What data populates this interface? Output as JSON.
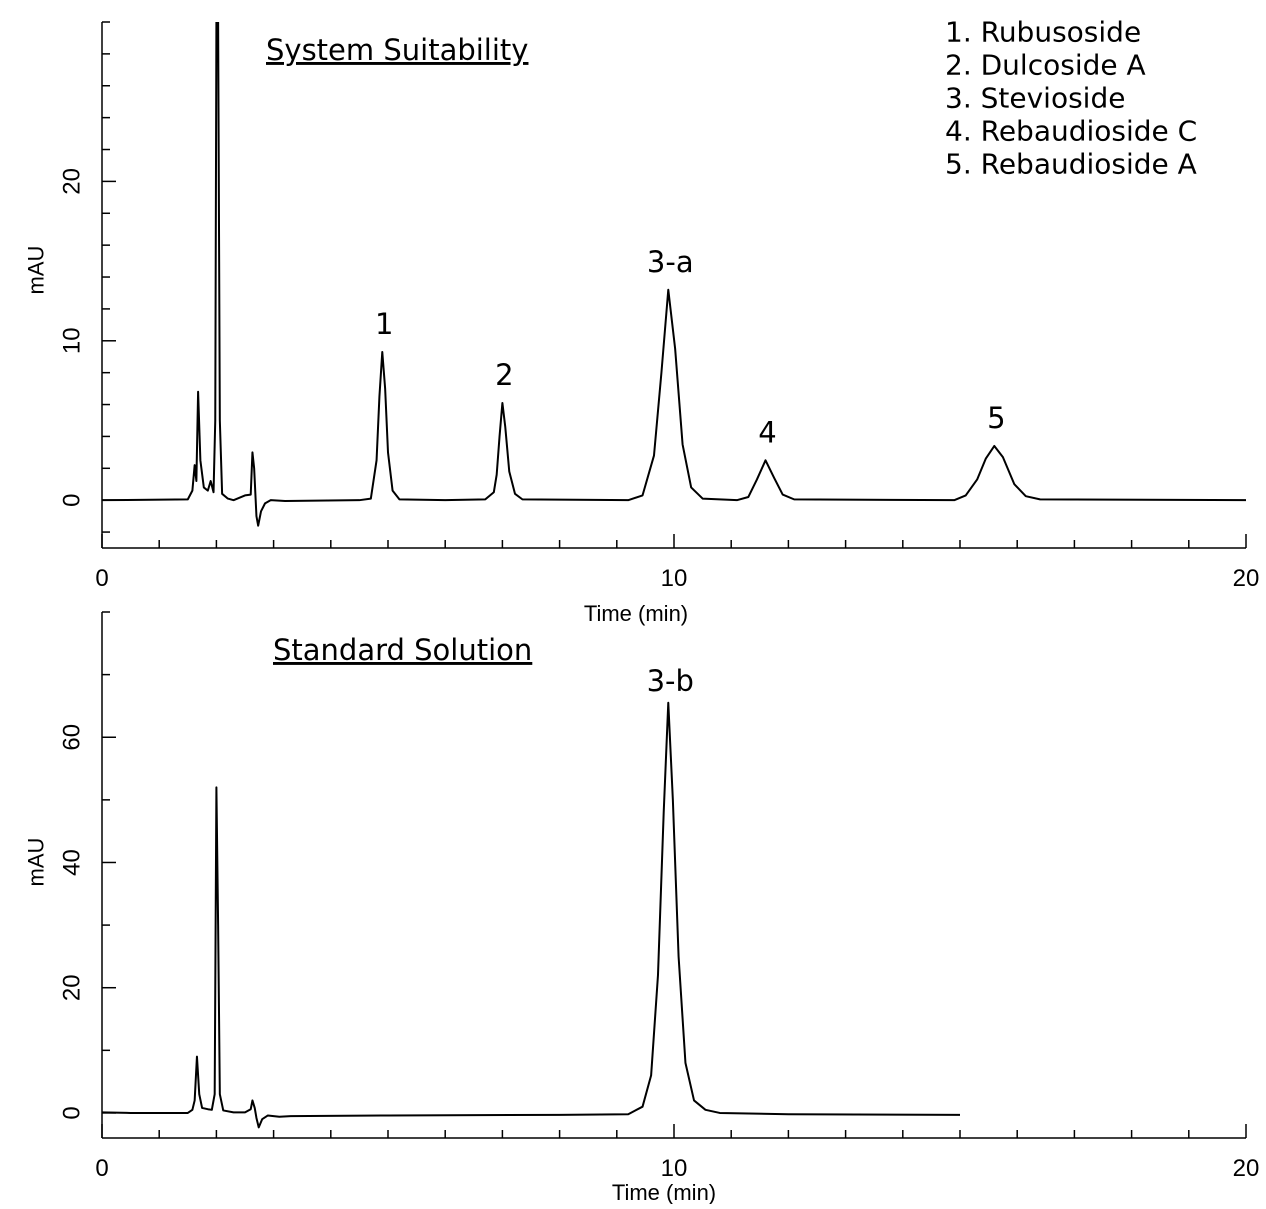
{
  "chart_data": [
    {
      "type": "line",
      "title": "System Suitability",
      "xlabel": "Time  (min)",
      "ylabel": "mAU",
      "xlim": [
        0,
        20
      ],
      "ylim": [
        -3,
        30
      ],
      "x_ticks": [
        0,
        10,
        20
      ],
      "y_ticks": [
        0,
        10,
        20
      ],
      "x_minor_step": 1,
      "y_minor_step": 2,
      "grid": false,
      "legend_position": "top-right",
      "legend": [
        "1. Rubusoside",
        "2. Dulcoside A",
        "3. Stevioside",
        "4. Rebaudioside C",
        "5. Rebaudioside A"
      ],
      "peak_labels": [
        {
          "label": "1",
          "x": 4.9,
          "y": 9.3
        },
        {
          "label": "2",
          "x": 7.0,
          "y": 6.1
        },
        {
          "label": "3-a",
          "x": 9.9,
          "y": 13.2
        },
        {
          "label": "4",
          "x": 11.6,
          "y": 2.5
        },
        {
          "label": "5",
          "x": 15.6,
          "y": 3.4
        }
      ],
      "series": [
        {
          "points": [
            [
              0.0,
              0.0
            ],
            [
              1.5,
              0.05
            ],
            [
              1.58,
              0.6
            ],
            [
              1.62,
              2.2
            ],
            [
              1.65,
              1.2
            ],
            [
              1.68,
              6.8
            ],
            [
              1.72,
              2.5
            ],
            [
              1.78,
              0.8
            ],
            [
              1.85,
              0.6
            ],
            [
              1.9,
              1.2
            ],
            [
              1.95,
              0.5
            ],
            [
              1.98,
              5.0
            ],
            [
              2.0,
              30.0
            ],
            [
              2.03,
              30.0
            ],
            [
              2.06,
              5.0
            ],
            [
              2.1,
              0.4
            ],
            [
              2.2,
              0.1
            ],
            [
              2.3,
              0.0
            ],
            [
              2.4,
              0.15
            ],
            [
              2.5,
              0.3
            ],
            [
              2.6,
              0.35
            ],
            [
              2.63,
              3.0
            ],
            [
              2.66,
              2.0
            ],
            [
              2.7,
              -1.0
            ],
            [
              2.73,
              -1.6
            ],
            [
              2.78,
              -0.7
            ],
            [
              2.85,
              -0.2
            ],
            [
              2.95,
              0.0
            ],
            [
              3.2,
              -0.05
            ],
            [
              4.5,
              0.0
            ],
            [
              4.7,
              0.1
            ],
            [
              4.8,
              2.5
            ],
            [
              4.85,
              6.5
            ],
            [
              4.9,
              9.3
            ],
            [
              4.95,
              7.0
            ],
            [
              5.0,
              3.0
            ],
            [
              5.08,
              0.6
            ],
            [
              5.2,
              0.05
            ],
            [
              6.0,
              0.0
            ],
            [
              6.7,
              0.05
            ],
            [
              6.8,
              0.35
            ],
            [
              6.85,
              0.5
            ],
            [
              6.9,
              1.6
            ],
            [
              6.95,
              4.0
            ],
            [
              7.0,
              6.1
            ],
            [
              7.05,
              4.6
            ],
            [
              7.12,
              1.8
            ],
            [
              7.22,
              0.4
            ],
            [
              7.35,
              0.05
            ],
            [
              9.2,
              0.0
            ],
            [
              9.45,
              0.3
            ],
            [
              9.65,
              2.8
            ],
            [
              9.78,
              8.0
            ],
            [
              9.9,
              13.2
            ],
            [
              10.02,
              9.5
            ],
            [
              10.15,
              3.5
            ],
            [
              10.3,
              0.8
            ],
            [
              10.5,
              0.1
            ],
            [
              11.1,
              0.0
            ],
            [
              11.3,
              0.2
            ],
            [
              11.45,
              1.3
            ],
            [
              11.6,
              2.5
            ],
            [
              11.75,
              1.4
            ],
            [
              11.9,
              0.35
            ],
            [
              12.1,
              0.05
            ],
            [
              14.9,
              0.0
            ],
            [
              15.1,
              0.3
            ],
            [
              15.3,
              1.3
            ],
            [
              15.45,
              2.6
            ],
            [
              15.6,
              3.4
            ],
            [
              15.75,
              2.7
            ],
            [
              15.95,
              1.0
            ],
            [
              16.15,
              0.25
            ],
            [
              16.4,
              0.05
            ],
            [
              20.0,
              0.0
            ]
          ]
        }
      ]
    },
    {
      "type": "line",
      "title": "Standard Solution",
      "xlabel": "Time (min)",
      "ylabel": "mAU",
      "xlim": [
        0,
        20
      ],
      "ylim": [
        -4,
        80
      ],
      "x_ticks": [
        0,
        10,
        20
      ],
      "y_ticks": [
        0,
        20,
        40,
        60
      ],
      "x_minor_step": 1,
      "y_minor_step": 10,
      "grid": false,
      "peak_labels": [
        {
          "label": "3-b",
          "x": 9.9,
          "y": 65.5
        }
      ],
      "series": [
        {
          "points": [
            [
              0.0,
              0.1
            ],
            [
              0.5,
              0.0
            ],
            [
              1.5,
              0.0
            ],
            [
              1.58,
              0.5
            ],
            [
              1.62,
              2.0
            ],
            [
              1.66,
              9.0
            ],
            [
              1.7,
              3.0
            ],
            [
              1.75,
              0.8
            ],
            [
              1.85,
              0.6
            ],
            [
              1.92,
              0.5
            ],
            [
              1.97,
              3.0
            ],
            [
              2.0,
              52.0
            ],
            [
              2.03,
              30.0
            ],
            [
              2.06,
              3.0
            ],
            [
              2.12,
              0.4
            ],
            [
              2.3,
              0.1
            ],
            [
              2.5,
              0.1
            ],
            [
              2.6,
              0.6
            ],
            [
              2.63,
              2.0
            ],
            [
              2.67,
              0.8
            ],
            [
              2.7,
              -0.8
            ],
            [
              2.74,
              -2.3
            ],
            [
              2.8,
              -1.0
            ],
            [
              2.9,
              -0.4
            ],
            [
              3.1,
              -0.6
            ],
            [
              3.3,
              -0.5
            ],
            [
              5.0,
              -0.4
            ],
            [
              8.0,
              -0.3
            ],
            [
              9.2,
              -0.2
            ],
            [
              9.45,
              1.0
            ],
            [
              9.6,
              6.0
            ],
            [
              9.72,
              22.0
            ],
            [
              9.82,
              48.0
            ],
            [
              9.9,
              65.5
            ],
            [
              9.98,
              50.0
            ],
            [
              10.08,
              25.0
            ],
            [
              10.2,
              8.0
            ],
            [
              10.35,
              2.0
            ],
            [
              10.55,
              0.5
            ],
            [
              10.8,
              0.0
            ],
            [
              12.0,
              -0.2
            ],
            [
              15.0,
              -0.3
            ]
          ]
        }
      ]
    }
  ]
}
